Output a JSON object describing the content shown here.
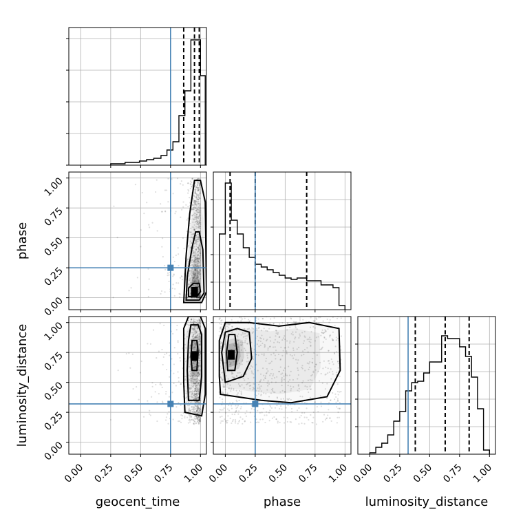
{
  "chart_data": {
    "type": "corner",
    "parameters": [
      "geocent_time",
      "phase",
      "luminosity_distance"
    ],
    "range": [
      -0.1,
      1.05
    ],
    "ticks": [
      0.0,
      0.25,
      0.5,
      0.75,
      1.0
    ],
    "tick_labels": [
      "0.00",
      "0.25",
      "0.50",
      "0.75",
      "1.00"
    ],
    "grid": true,
    "truth_color": "#4682b4",
    "truths": {
      "geocent_time": 0.75,
      "phase": 0.25,
      "luminosity_distance": 0.32
    },
    "diagonal": {
      "geocent_time": {
        "quantiles": [
          0.86,
          0.95,
          0.99
        ],
        "ticks_y": [
          0.5,
          0.73,
          0.96,
          1.19,
          1.42
        ],
        "ylim": [
          0.5,
          1.5
        ],
        "bins": [
          {
            "x0": 0.25,
            "x1": 0.37,
            "y": 0.51
          },
          {
            "x0": 0.37,
            "x1": 0.49,
            "y": 0.52
          },
          {
            "x0": 0.49,
            "x1": 0.55,
            "y": 0.53
          },
          {
            "x0": 0.55,
            "x1": 0.61,
            "y": 0.54
          },
          {
            "x0": 0.61,
            "x1": 0.67,
            "y": 0.55
          },
          {
            "x0": 0.67,
            "x1": 0.72,
            "y": 0.57
          },
          {
            "x0": 0.72,
            "x1": 0.77,
            "y": 0.61
          },
          {
            "x0": 0.77,
            "x1": 0.82,
            "y": 0.67
          },
          {
            "x0": 0.82,
            "x1": 0.87,
            "y": 0.86
          },
          {
            "x0": 0.87,
            "x1": 0.92,
            "y": 1.04
          },
          {
            "x0": 0.92,
            "x1": 0.97,
            "y": 1.41
          },
          {
            "x0": 0.97,
            "x1": 1.0,
            "y": 1.41
          },
          {
            "x0": 1.0,
            "x1": 1.04,
            "y": 1.15
          }
        ]
      },
      "phase": {
        "quantiles": [
          0.04,
          0.25,
          0.68
        ],
        "ylim": [
          0,
          1
        ],
        "bins": [
          {
            "x0": -0.05,
            "x1": 0.0,
            "y": 0.55
          },
          {
            "x0": 0.0,
            "x1": 0.05,
            "y": 0.92
          },
          {
            "x0": 0.05,
            "x1": 0.1,
            "y": 0.65
          },
          {
            "x0": 0.1,
            "x1": 0.15,
            "y": 0.55
          },
          {
            "x0": 0.15,
            "x1": 0.2,
            "y": 0.45
          },
          {
            "x0": 0.2,
            "x1": 0.25,
            "y": 0.38
          },
          {
            "x0": 0.25,
            "x1": 0.3,
            "y": 0.33
          },
          {
            "x0": 0.3,
            "x1": 0.35,
            "y": 0.31
          },
          {
            "x0": 0.35,
            "x1": 0.4,
            "y": 0.29
          },
          {
            "x0": 0.4,
            "x1": 0.45,
            "y": 0.27
          },
          {
            "x0": 0.45,
            "x1": 0.5,
            "y": 0.25
          },
          {
            "x0": 0.5,
            "x1": 0.55,
            "y": 0.23
          },
          {
            "x0": 0.55,
            "x1": 0.6,
            "y": 0.22
          },
          {
            "x0": 0.6,
            "x1": 0.68,
            "y": 0.23
          },
          {
            "x0": 0.68,
            "x1": 0.8,
            "y": 0.21
          },
          {
            "x0": 0.8,
            "x1": 0.9,
            "y": 0.18
          },
          {
            "x0": 0.9,
            "x1": 0.95,
            "y": 0.16
          },
          {
            "x0": 0.95,
            "x1": 1.0,
            "y": 0.03
          }
        ]
      },
      "luminosity_distance": {
        "quantiles": [
          0.38,
          0.63,
          0.83
        ],
        "ylim": [
          0,
          1
        ],
        "bins": [
          {
            "x0": 0.0,
            "x1": 0.05,
            "y": 0.01
          },
          {
            "x0": 0.05,
            "x1": 0.1,
            "y": 0.05
          },
          {
            "x0": 0.1,
            "x1": 0.15,
            "y": 0.08
          },
          {
            "x0": 0.15,
            "x1": 0.2,
            "y": 0.14
          },
          {
            "x0": 0.2,
            "x1": 0.25,
            "y": 0.24
          },
          {
            "x0": 0.25,
            "x1": 0.3,
            "y": 0.31
          },
          {
            "x0": 0.3,
            "x1": 0.35,
            "y": 0.46
          },
          {
            "x0": 0.35,
            "x1": 0.4,
            "y": 0.52
          },
          {
            "x0": 0.4,
            "x1": 0.45,
            "y": 0.53
          },
          {
            "x0": 0.45,
            "x1": 0.5,
            "y": 0.59
          },
          {
            "x0": 0.5,
            "x1": 0.55,
            "y": 0.67
          },
          {
            "x0": 0.55,
            "x1": 0.6,
            "y": 0.67
          },
          {
            "x0": 0.6,
            "x1": 0.65,
            "y": 0.86
          },
          {
            "x0": 0.65,
            "x1": 0.7,
            "y": 0.84
          },
          {
            "x0": 0.7,
            "x1": 0.75,
            "y": 0.84
          },
          {
            "x0": 0.75,
            "x1": 0.8,
            "y": 0.78
          },
          {
            "x0": 0.8,
            "x1": 0.85,
            "y": 0.71
          },
          {
            "x0": 0.85,
            "x1": 0.9,
            "y": 0.56
          },
          {
            "x0": 0.9,
            "x1": 0.95,
            "y": 0.33
          },
          {
            "x0": 0.95,
            "x1": 1.0,
            "y": 0.03
          }
        ]
      }
    },
    "pairs": [
      {
        "x": "geocent_time",
        "y": "phase",
        "density_center": [
          0.95,
          0.05
        ],
        "contours": [
          [
            [
              0.9,
              0.01
            ],
            [
              0.97,
              0.01
            ],
            [
              1.0,
              0.05
            ],
            [
              0.99,
              0.12
            ],
            [
              0.94,
              0.12
            ],
            [
              0.9,
              0.08
            ]
          ],
          [
            [
              0.88,
              -0.02
            ],
            [
              0.99,
              -0.02
            ],
            [
              1.03,
              0.04
            ],
            [
              1.02,
              0.4
            ],
            [
              0.99,
              0.55
            ],
            [
              0.96,
              0.55
            ],
            [
              0.93,
              0.42
            ],
            [
              0.89,
              0.18
            ]
          ],
          [
            [
              0.86,
              -0.04
            ],
            [
              1.01,
              -0.04
            ],
            [
              1.05,
              0.05
            ],
            [
              1.04,
              0.8
            ],
            [
              1.0,
              0.98
            ],
            [
              0.95,
              0.98
            ],
            [
              0.91,
              0.7
            ],
            [
              0.88,
              0.35
            ]
          ]
        ]
      },
      {
        "x": "geocent_time",
        "y": "luminosity_distance",
        "density_center": [
          0.95,
          0.72
        ],
        "contours": [
          [
            [
              0.93,
              0.6
            ],
            [
              0.97,
              0.6
            ],
            [
              0.98,
              0.75
            ],
            [
              0.97,
              0.85
            ],
            [
              0.93,
              0.85
            ],
            [
              0.92,
              0.72
            ]
          ],
          [
            [
              0.9,
              0.35
            ],
            [
              0.99,
              0.35
            ],
            [
              1.01,
              0.55
            ],
            [
              1.01,
              0.9
            ],
            [
              0.98,
              0.98
            ],
            [
              0.92,
              0.98
            ],
            [
              0.9,
              0.85
            ],
            [
              0.89,
              0.6
            ]
          ],
          [
            [
              0.87,
              0.25
            ],
            [
              1.01,
              0.22
            ],
            [
              1.04,
              0.4
            ],
            [
              1.04,
              0.95
            ],
            [
              1.0,
              1.05
            ],
            [
              0.9,
              1.05
            ],
            [
              0.86,
              0.95
            ],
            [
              0.86,
              0.5
            ]
          ]
        ]
      },
      {
        "x": "phase",
        "y": "luminosity_distance",
        "density_center": [
          0.05,
          0.73
        ],
        "contours": [
          [
            [
              0.02,
              0.6
            ],
            [
              0.08,
              0.6
            ],
            [
              0.1,
              0.75
            ],
            [
              0.08,
              0.9
            ],
            [
              0.03,
              0.9
            ],
            [
              0.01,
              0.75
            ]
          ],
          [
            [
              0.0,
              0.5
            ],
            [
              0.15,
              0.55
            ],
            [
              0.22,
              0.7
            ],
            [
              0.2,
              0.92
            ],
            [
              0.1,
              0.95
            ],
            [
              0.0,
              0.92
            ],
            [
              -0.03,
              0.75
            ]
          ],
          [
            [
              -0.04,
              0.4
            ],
            [
              0.3,
              0.35
            ],
            [
              0.55,
              0.33
            ],
            [
              0.85,
              0.38
            ],
            [
              0.96,
              0.6
            ],
            [
              0.95,
              0.95
            ],
            [
              0.7,
              1.0
            ],
            [
              0.45,
              0.97
            ],
            [
              0.2,
              1.0
            ],
            [
              0.0,
              1.0
            ],
            [
              -0.05,
              0.85
            ],
            [
              -0.05,
              0.55
            ]
          ]
        ]
      }
    ]
  }
}
